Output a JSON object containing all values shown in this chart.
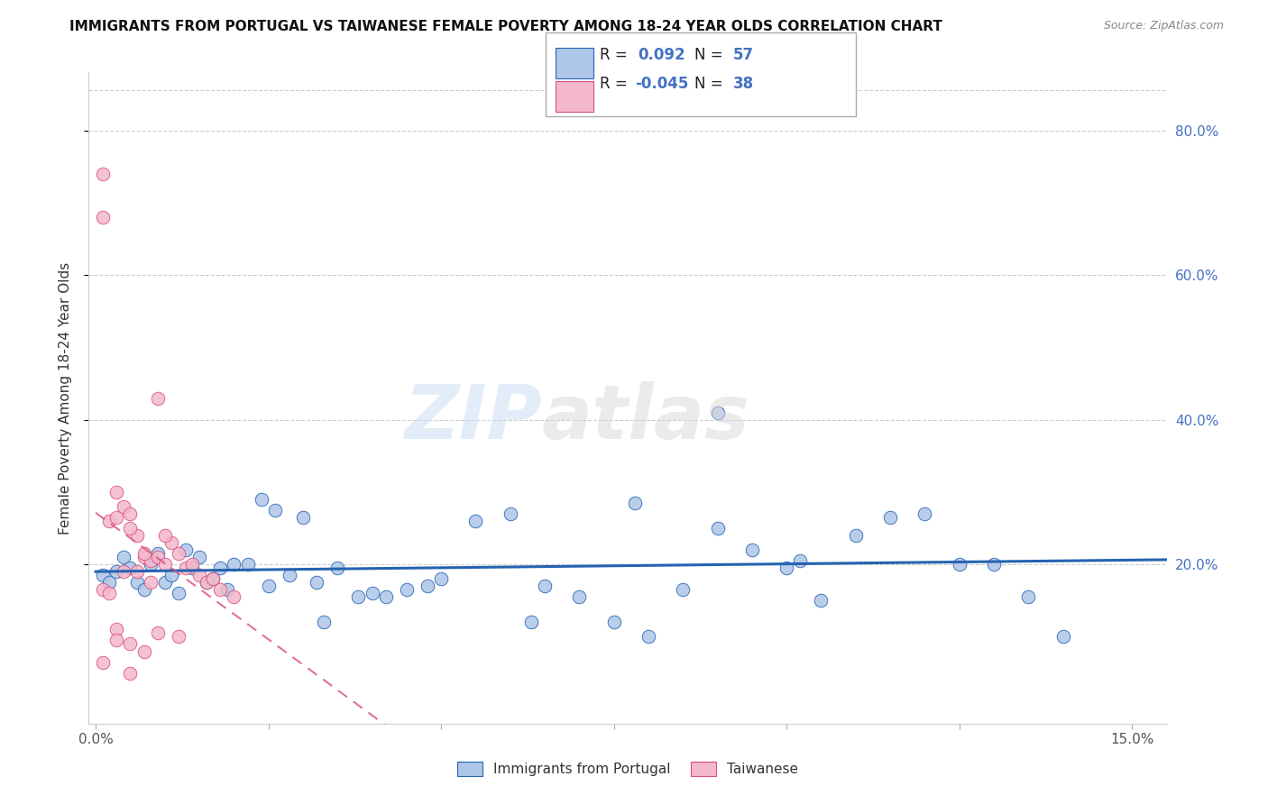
{
  "title": "IMMIGRANTS FROM PORTUGAL VS TAIWANESE FEMALE POVERTY AMONG 18-24 YEAR OLDS CORRELATION CHART",
  "source": "Source: ZipAtlas.com",
  "ylabel": "Female Poverty Among 18-24 Year Olds",
  "right_yticks": [
    "80.0%",
    "60.0%",
    "40.0%",
    "20.0%"
  ],
  "right_ytick_vals": [
    0.8,
    0.6,
    0.4,
    0.2
  ],
  "ylim": [
    -0.02,
    0.88
  ],
  "xlim": [
    -0.001,
    0.155
  ],
  "color_blue": "#aec6e8",
  "color_pink": "#f4b8cc",
  "line_blue": "#2563b0",
  "line_pink": "#d94f7a",
  "blue_scatter_x": [
    0.001,
    0.002,
    0.003,
    0.004,
    0.005,
    0.006,
    0.007,
    0.008,
    0.009,
    0.01,
    0.011,
    0.012,
    0.013,
    0.014,
    0.015,
    0.016,
    0.017,
    0.018,
    0.019,
    0.02,
    0.022,
    0.024,
    0.026,
    0.028,
    0.03,
    0.032,
    0.035,
    0.038,
    0.04,
    0.042,
    0.045,
    0.05,
    0.055,
    0.06,
    0.065,
    0.07,
    0.075,
    0.08,
    0.085,
    0.09,
    0.095,
    0.1,
    0.105,
    0.11,
    0.115,
    0.12,
    0.125,
    0.09,
    0.13,
    0.135,
    0.14,
    0.025,
    0.048,
    0.033,
    0.063,
    0.078,
    0.102
  ],
  "blue_scatter_y": [
    0.185,
    0.175,
    0.19,
    0.21,
    0.195,
    0.175,
    0.165,
    0.2,
    0.215,
    0.175,
    0.185,
    0.16,
    0.22,
    0.195,
    0.21,
    0.175,
    0.18,
    0.195,
    0.165,
    0.2,
    0.2,
    0.29,
    0.275,
    0.185,
    0.265,
    0.175,
    0.195,
    0.155,
    0.16,
    0.155,
    0.165,
    0.18,
    0.26,
    0.27,
    0.17,
    0.155,
    0.12,
    0.1,
    0.165,
    0.25,
    0.22,
    0.195,
    0.15,
    0.24,
    0.265,
    0.27,
    0.2,
    0.41,
    0.2,
    0.155,
    0.1,
    0.17,
    0.17,
    0.12,
    0.12,
    0.285,
    0.205
  ],
  "pink_scatter_x": [
    0.001,
    0.001,
    0.002,
    0.003,
    0.004,
    0.005,
    0.006,
    0.007,
    0.008,
    0.009,
    0.01,
    0.011,
    0.012,
    0.013,
    0.014,
    0.015,
    0.016,
    0.017,
    0.018,
    0.02,
    0.003,
    0.005,
    0.007,
    0.009,
    0.001,
    0.002,
    0.004,
    0.006,
    0.008,
    0.01,
    0.003,
    0.005,
    0.007,
    0.009,
    0.012,
    0.001,
    0.003,
    0.005
  ],
  "pink_scatter_y": [
    0.74,
    0.68,
    0.26,
    0.265,
    0.28,
    0.27,
    0.24,
    0.21,
    0.205,
    0.21,
    0.2,
    0.23,
    0.215,
    0.195,
    0.2,
    0.185,
    0.175,
    0.18,
    0.165,
    0.155,
    0.3,
    0.25,
    0.215,
    0.43,
    0.165,
    0.16,
    0.19,
    0.19,
    0.175,
    0.24,
    0.11,
    0.09,
    0.08,
    0.105,
    0.1,
    0.065,
    0.095,
    0.05
  ],
  "grid_color": "#cccccc",
  "spine_color": "#cccccc",
  "title_fontsize": 11,
  "source_fontsize": 9,
  "tick_fontsize": 11,
  "ylabel_fontsize": 11
}
